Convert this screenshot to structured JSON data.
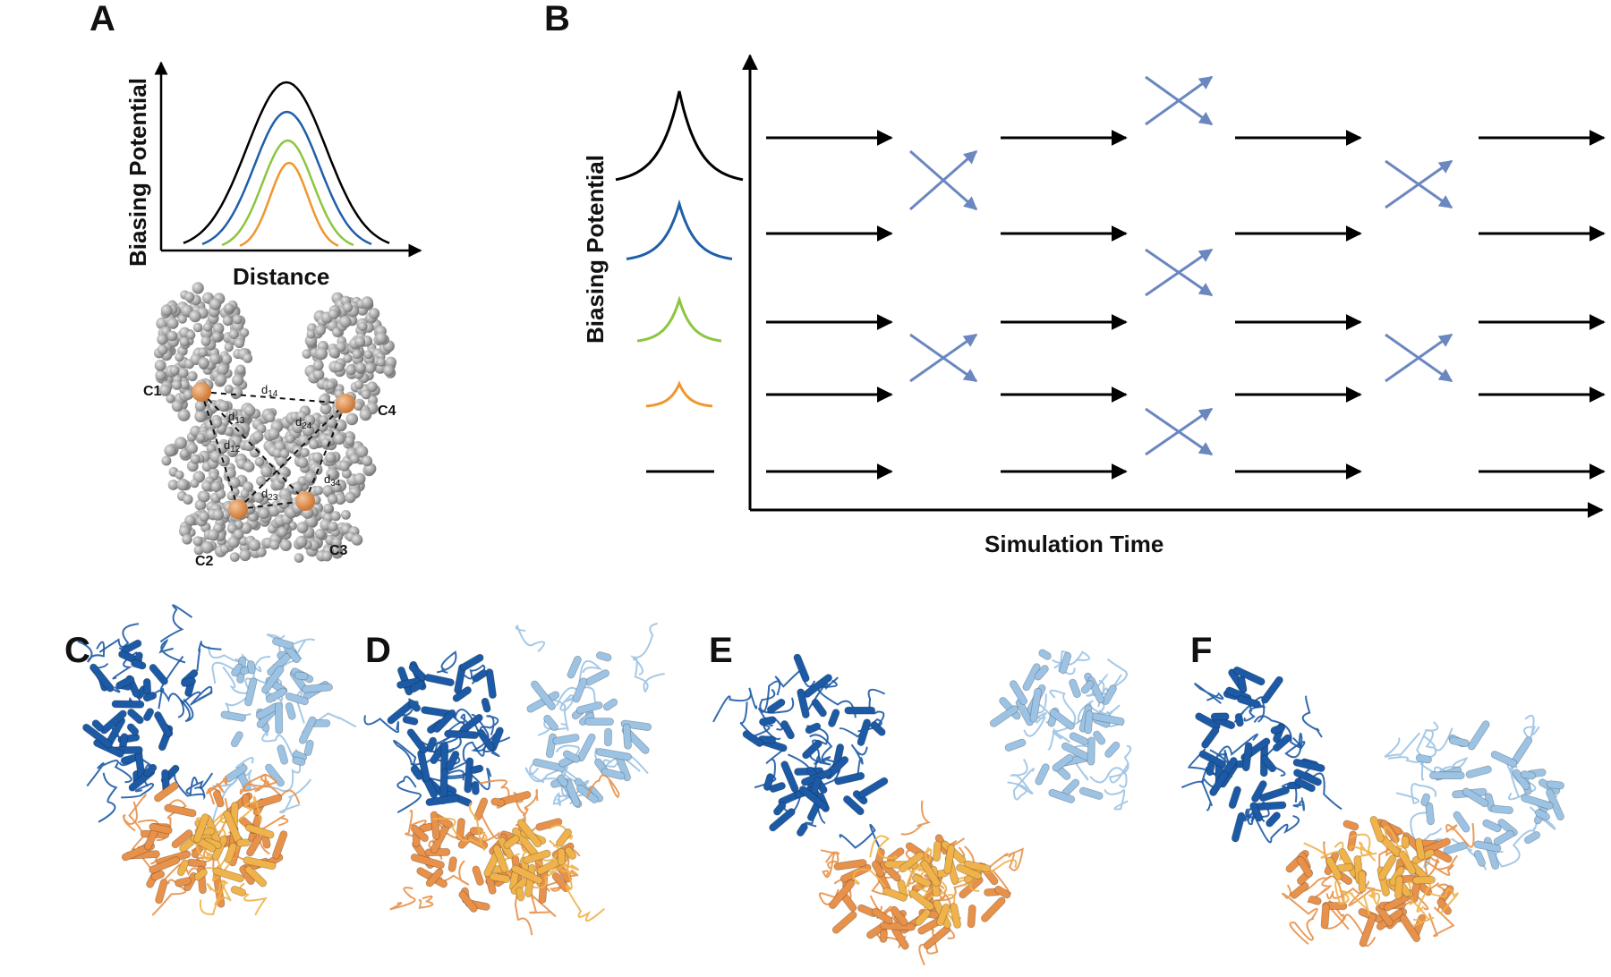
{
  "panels": {
    "A": {
      "label": "A",
      "ylabel": "Biasing Potential",
      "xlabel": "Distance",
      "curve_colors": [
        "#000000",
        "#1f5fa8",
        "#8cc63f",
        "#f0962e"
      ],
      "nodes": [
        "C1",
        "C2",
        "C3",
        "C4"
      ],
      "distances": [
        {
          "base": "d",
          "sub": "14"
        },
        {
          "base": "d",
          "sub": "13"
        },
        {
          "base": "d",
          "sub": "24"
        },
        {
          "base": "d",
          "sub": "12"
        },
        {
          "base": "d",
          "sub": "34"
        },
        {
          "base": "d",
          "sub": "23"
        }
      ]
    },
    "B": {
      "label": "B",
      "ylabel": "Biasing Potential",
      "xlabel": "Simulation Time",
      "replica_colors": [
        "#000000",
        "#1f5fa8",
        "#8cc63f",
        "#f0962e",
        "#000000"
      ],
      "exchange_color": "#6b87c0"
    },
    "C": {
      "label": "C"
    },
    "D": {
      "label": "D"
    },
    "E": {
      "label": "E"
    },
    "F": {
      "label": "F"
    }
  },
  "colors": {
    "domain_dark_blue": "#1c5aa6",
    "domain_light_blue": "#9cc3e4",
    "domain_orange": "#e8914a",
    "domain_gold": "#f0b24a",
    "bead_gray": "#a6a6a6",
    "anchor_orange": "#e08a3c"
  }
}
